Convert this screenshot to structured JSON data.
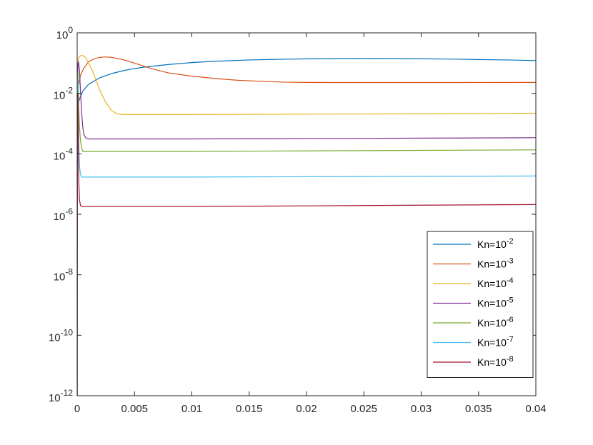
{
  "chart_data": {
    "type": "line",
    "title": "",
    "xlabel": "",
    "ylabel": "",
    "xlim": [
      0,
      0.04
    ],
    "ylim": [
      1e-12,
      1
    ],
    "yscale": "log",
    "grid": false,
    "legend_position": "bottom-right",
    "x_ticks": [
      {
        "value": 0,
        "label": "0"
      },
      {
        "value": 0.005,
        "label": "0.005"
      },
      {
        "value": 0.01,
        "label": "0.01"
      },
      {
        "value": 0.015,
        "label": "0.015"
      },
      {
        "value": 0.02,
        "label": "0.02"
      },
      {
        "value": 0.025,
        "label": "0.025"
      },
      {
        "value": 0.03,
        "label": "0.03"
      },
      {
        "value": 0.035,
        "label": "0.035"
      },
      {
        "value": 0.04,
        "label": "0.04"
      }
    ],
    "y_ticks": [
      {
        "value": 1e-12,
        "base": "10",
        "exp": "-12"
      },
      {
        "value": 1e-10,
        "base": "10",
        "exp": "-10"
      },
      {
        "value": 1e-08,
        "base": "10",
        "exp": "-8"
      },
      {
        "value": 1e-06,
        "base": "10",
        "exp": "-6"
      },
      {
        "value": 0.0001,
        "base": "10",
        "exp": "-4"
      },
      {
        "value": 0.01,
        "base": "10",
        "exp": "-2"
      },
      {
        "value": 1,
        "base": "10",
        "exp": "0"
      }
    ],
    "series": [
      {
        "name": "Kn=10^-2",
        "label_base": "Kn=10",
        "label_exp": "-2",
        "color": "#0072BD",
        "points": [
          [
            0,
            1e-12
          ],
          [
            2e-05,
            0.0001
          ],
          [
            5e-05,
            0.002
          ],
          [
            0.0001,
            0.0045
          ],
          [
            0.0002,
            0.0065
          ],
          [
            0.0005,
            0.012
          ],
          [
            0.001,
            0.02
          ],
          [
            0.002,
            0.033
          ],
          [
            0.003,
            0.045
          ],
          [
            0.004,
            0.056
          ],
          [
            0.005,
            0.066
          ],
          [
            0.006,
            0.075
          ],
          [
            0.008,
            0.09
          ],
          [
            0.01,
            0.104
          ],
          [
            0.012,
            0.115
          ],
          [
            0.015,
            0.127
          ],
          [
            0.018,
            0.134
          ],
          [
            0.02,
            0.138
          ],
          [
            0.023,
            0.141
          ],
          [
            0.025,
            0.142
          ],
          [
            0.028,
            0.141
          ],
          [
            0.03,
            0.139
          ],
          [
            0.033,
            0.135
          ],
          [
            0.035,
            0.131
          ],
          [
            0.038,
            0.126
          ],
          [
            0.04,
            0.121
          ]
        ]
      },
      {
        "name": "Kn=10^-3",
        "label_base": "Kn=10",
        "label_exp": "-3",
        "color": "#D95319",
        "points": [
          [
            0,
            1e-12
          ],
          [
            2e-05,
            0.001
          ],
          [
            5e-05,
            0.008
          ],
          [
            0.0001,
            0.018
          ],
          [
            0.0003,
            0.04
          ],
          [
            0.0006,
            0.07
          ],
          [
            0.001,
            0.11
          ],
          [
            0.0015,
            0.14
          ],
          [
            0.002,
            0.155
          ],
          [
            0.0025,
            0.16
          ],
          [
            0.003,
            0.155
          ],
          [
            0.004,
            0.13
          ],
          [
            0.005,
            0.1
          ],
          [
            0.006,
            0.075
          ],
          [
            0.007,
            0.058
          ],
          [
            0.008,
            0.047
          ],
          [
            0.01,
            0.037
          ],
          [
            0.012,
            0.031
          ],
          [
            0.014,
            0.027
          ],
          [
            0.016,
            0.025
          ],
          [
            0.018,
            0.0235
          ],
          [
            0.02,
            0.023
          ],
          [
            0.022,
            0.0228
          ],
          [
            0.025,
            0.0228
          ],
          [
            0.03,
            0.0228
          ],
          [
            0.035,
            0.0229
          ],
          [
            0.04,
            0.023
          ]
        ]
      },
      {
        "name": "Kn=10^-4",
        "label_base": "Kn=10",
        "label_exp": "-4",
        "color": "#EDB120",
        "points": [
          [
            0,
            1e-12
          ],
          [
            2e-05,
            0.01
          ],
          [
            5e-05,
            0.07
          ],
          [
            0.0001,
            0.13
          ],
          [
            0.0002,
            0.17
          ],
          [
            0.0004,
            0.18
          ],
          [
            0.0006,
            0.17
          ],
          [
            0.0008,
            0.14
          ],
          [
            0.001,
            0.1
          ],
          [
            0.0013,
            0.06
          ],
          [
            0.0016,
            0.03
          ],
          [
            0.002,
            0.012
          ],
          [
            0.0025,
            0.005
          ],
          [
            0.003,
            0.0027
          ],
          [
            0.0035,
            0.0021
          ],
          [
            0.004,
            0.002
          ],
          [
            0.01,
            0.002
          ],
          [
            0.02,
            0.00205
          ],
          [
            0.03,
            0.0021
          ],
          [
            0.035,
            0.00215
          ],
          [
            0.04,
            0.0022
          ]
        ]
      },
      {
        "name": "Kn=10^-5",
        "label_base": "Kn=10",
        "label_exp": "-5",
        "color": "#7E2F8E",
        "points": [
          [
            0,
            1e-12
          ],
          [
            2e-05,
            0.002
          ],
          [
            5e-05,
            0.05
          ],
          [
            8e-05,
            0.1
          ],
          [
            0.00012,
            0.11
          ],
          [
            0.0002,
            0.06
          ],
          [
            0.0003,
            0.01
          ],
          [
            0.0004,
            0.002
          ],
          [
            0.0005,
            0.0007
          ],
          [
            0.0006,
            0.00042
          ],
          [
            0.0008,
            0.00032
          ],
          [
            0.001,
            0.00031
          ],
          [
            0.01,
            0.00031
          ],
          [
            0.02,
            0.00032
          ],
          [
            0.03,
            0.00033
          ],
          [
            0.04,
            0.00034
          ]
        ]
      },
      {
        "name": "Kn=10^-6",
        "label_base": "Kn=10",
        "label_exp": "-6",
        "color": "#77AC30",
        "points": [
          [
            0,
            1e-12
          ],
          [
            2e-05,
            0.005
          ],
          [
            4e-05,
            0.04
          ],
          [
            7e-05,
            0.05
          ],
          [
            0.0001,
            0.02
          ],
          [
            0.00015,
            0.003
          ],
          [
            0.0002,
            0.0008
          ],
          [
            0.0003,
            0.00025
          ],
          [
            0.0004,
            0.00015
          ],
          [
            0.0005,
            0.00012
          ],
          [
            0.001,
            0.00012
          ],
          [
            0.01,
            0.00012
          ],
          [
            0.02,
            0.000125
          ],
          [
            0.03,
            0.00013
          ],
          [
            0.04,
            0.000135
          ]
        ]
      },
      {
        "name": "Kn=10^-7",
        "label_base": "Kn=10",
        "label_exp": "-7",
        "color": "#4DBEEE",
        "points": [
          [
            0,
            1e-12
          ],
          [
            2e-05,
            0.003
          ],
          [
            4e-05,
            0.02
          ],
          [
            6e-05,
            0.03
          ],
          [
            8e-05,
            0.01
          ],
          [
            0.0001,
            0.002
          ],
          [
            0.00015,
            0.0002
          ],
          [
            0.0002,
            4e-05
          ],
          [
            0.0003,
            2e-05
          ],
          [
            0.0004,
            1.7e-05
          ],
          [
            0.001,
            1.7e-05
          ],
          [
            0.01,
            1.7e-05
          ],
          [
            0.02,
            1.75e-05
          ],
          [
            0.03,
            1.8e-05
          ],
          [
            0.04,
            1.85e-05
          ]
        ]
      },
      {
        "name": "Kn=10^-8",
        "label_base": "Kn=10",
        "label_exp": "-8",
        "color": "#A2142F",
        "points": [
          [
            0,
            1e-12
          ],
          [
            2e-05,
            0.001
          ],
          [
            4e-05,
            0.008
          ],
          [
            6e-05,
            0.01
          ],
          [
            8e-05,
            0.002
          ],
          [
            0.0001,
            0.0002
          ],
          [
            0.00015,
            1e-05
          ],
          [
            0.0002,
            3e-06
          ],
          [
            0.0003,
            1.9e-06
          ],
          [
            0.0005,
            1.8e-06
          ],
          [
            0.01,
            1.8e-06
          ],
          [
            0.02,
            1.9e-06
          ],
          [
            0.03,
            2e-06
          ],
          [
            0.04,
            2.1e-06
          ]
        ]
      }
    ]
  }
}
